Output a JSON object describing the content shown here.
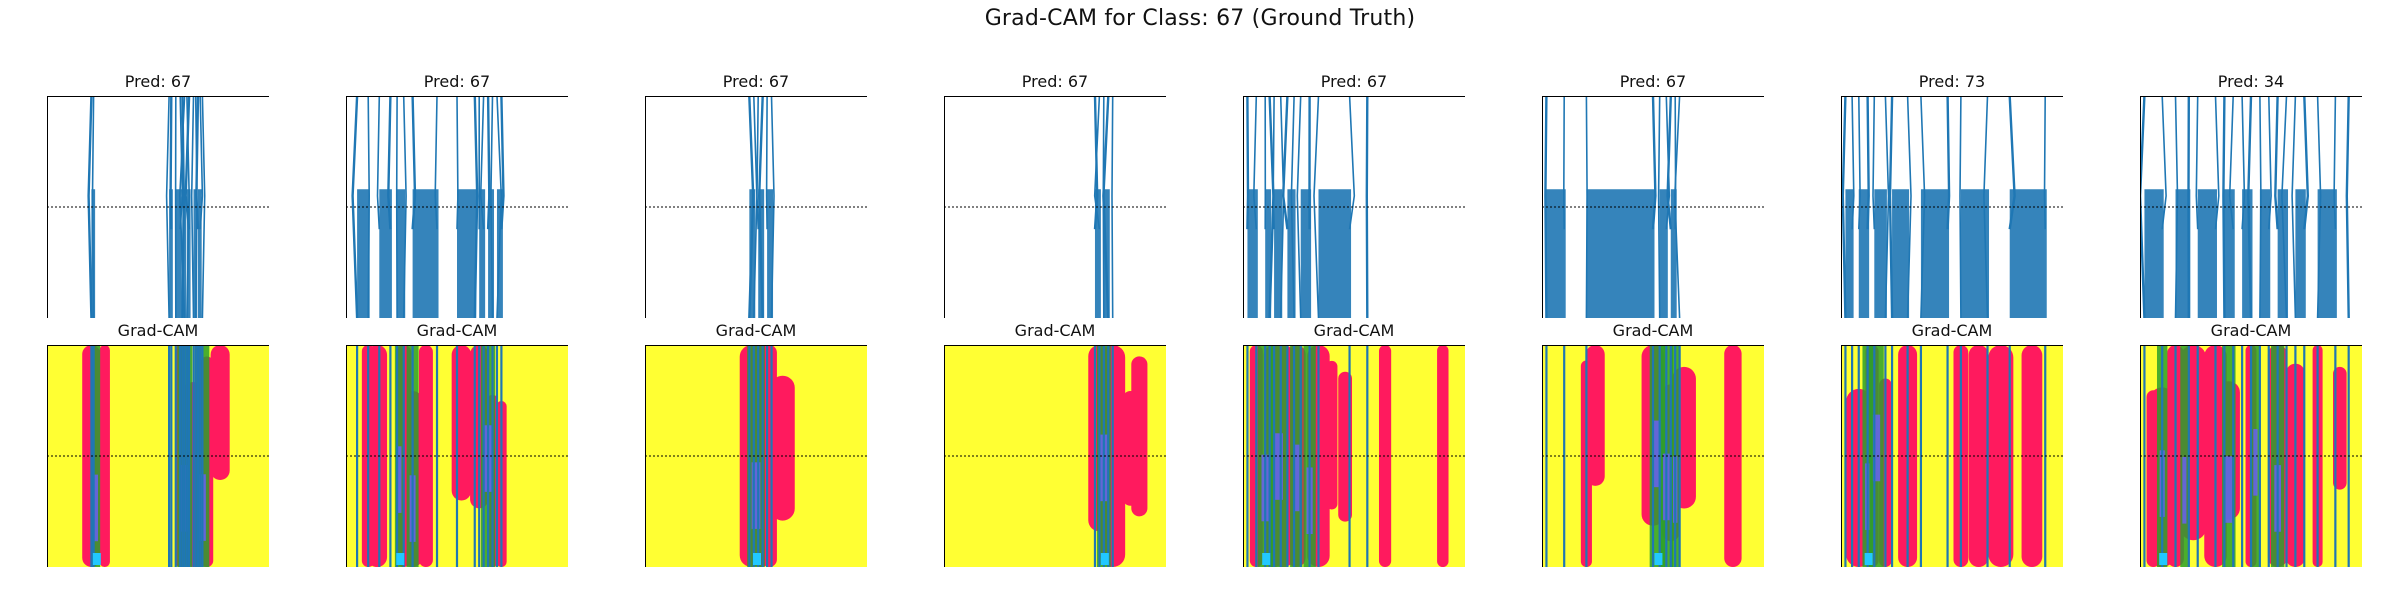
{
  "figure": {
    "suptitle": "Grad-CAM for Class: 67 (Ground Truth)",
    "gradcam_label": "Grad-CAM"
  },
  "colors": {
    "signal": "#1f77b4",
    "heat_background": "#ffff33",
    "heat_hot": "#ff1a5e",
    "heat_green": "#2ca02c",
    "heat_blue": "#6a5cff",
    "heat_cyan": "#22c8ff",
    "axis": "#000000"
  },
  "chart_data": {
    "type": "line",
    "description_of_layout": "",
    "panels": [
      {
        "pred_label": "Pred: 67",
        "pred": 67,
        "signal_x": [
          0.2,
          0.21,
          0.55,
          0.56,
          0.58,
          0.6,
          0.61,
          0.62,
          0.63,
          0.64,
          0.66,
          0.67,
          0.68,
          0.69,
          0.7
        ],
        "hot_x": [
          0.2,
          0.26,
          0.6,
          0.66,
          0.72,
          0.78
        ],
        "green_x": [
          0.22,
          0.62,
          0.7
        ]
      },
      {
        "pred_label": "Pred: 67",
        "pred": 67,
        "signal_x": [
          0.05,
          0.1,
          0.15,
          0.2,
          0.23,
          0.26,
          0.3,
          0.41,
          0.5,
          0.58,
          0.6,
          0.62,
          0.64,
          0.66,
          0.68,
          0.7
        ],
        "hot_x": [
          0.1,
          0.14,
          0.26,
          0.3,
          0.36,
          0.52,
          0.6,
          0.66,
          0.7
        ],
        "green_x": [
          0.24,
          0.3,
          0.64
        ]
      },
      {
        "pred_label": "Pred: 67",
        "pred": 67,
        "signal_x": [
          0.47,
          0.49,
          0.51,
          0.53,
          0.55,
          0.57
        ],
        "hot_x": [
          0.48,
          0.52,
          0.56,
          0.62
        ],
        "green_x": [
          0.5
        ]
      },
      {
        "pred_label": "Pred: 67",
        "pred": 67,
        "signal_x": [
          0.68,
          0.7,
          0.72,
          0.74,
          0.76
        ],
        "hot_x": [
          0.7,
          0.76,
          0.84,
          0.88
        ],
        "green_x": [
          0.72
        ]
      },
      {
        "pred_label": "Pred: 67",
        "pred": 67,
        "signal_x": [
          0.02,
          0.06,
          0.1,
          0.12,
          0.14,
          0.17,
          0.2,
          0.23,
          0.26,
          0.3,
          0.34,
          0.48,
          0.56
        ],
        "hot_x": [
          0.06,
          0.14,
          0.18,
          0.24,
          0.34,
          0.4,
          0.46,
          0.64,
          0.9
        ],
        "green_x": [
          0.1,
          0.16,
          0.24,
          0.3
        ]
      },
      {
        "pred_label": "Pred: 67",
        "pred": 67,
        "signal_x": [
          0.02,
          0.1,
          0.2,
          0.5,
          0.53,
          0.56,
          0.58,
          0.6,
          0.62
        ],
        "hot_x": [
          0.2,
          0.24,
          0.5,
          0.58,
          0.64,
          0.86
        ],
        "green_x": [
          0.52,
          0.56,
          0.6
        ]
      },
      {
        "pred_label": "Pred: 73",
        "pred": 73,
        "signal_x": [
          0.02,
          0.05,
          0.08,
          0.12,
          0.15,
          0.2,
          0.23,
          0.3,
          0.36,
          0.48,
          0.54,
          0.66,
          0.76,
          0.92
        ],
        "hot_x": [
          0.08,
          0.14,
          0.2,
          0.3,
          0.54,
          0.62,
          0.72,
          0.86
        ],
        "green_x": [
          0.12,
          0.16
        ]
      },
      {
        "pred_label": "Pred: 34",
        "pred": 34,
        "signal_x": [
          0.02,
          0.1,
          0.16,
          0.22,
          0.26,
          0.34,
          0.38,
          0.42,
          0.46,
          0.5,
          0.54,
          0.58,
          0.62,
          0.66,
          0.7,
          0.74,
          0.8,
          0.88,
          0.94
        ],
        "hot_x": [
          0.06,
          0.1,
          0.16,
          0.24,
          0.34,
          0.4,
          0.5,
          0.62,
          0.7,
          0.8,
          0.9
        ],
        "green_x": [
          0.1,
          0.2,
          0.4,
          0.52,
          0.62
        ]
      }
    ]
  }
}
